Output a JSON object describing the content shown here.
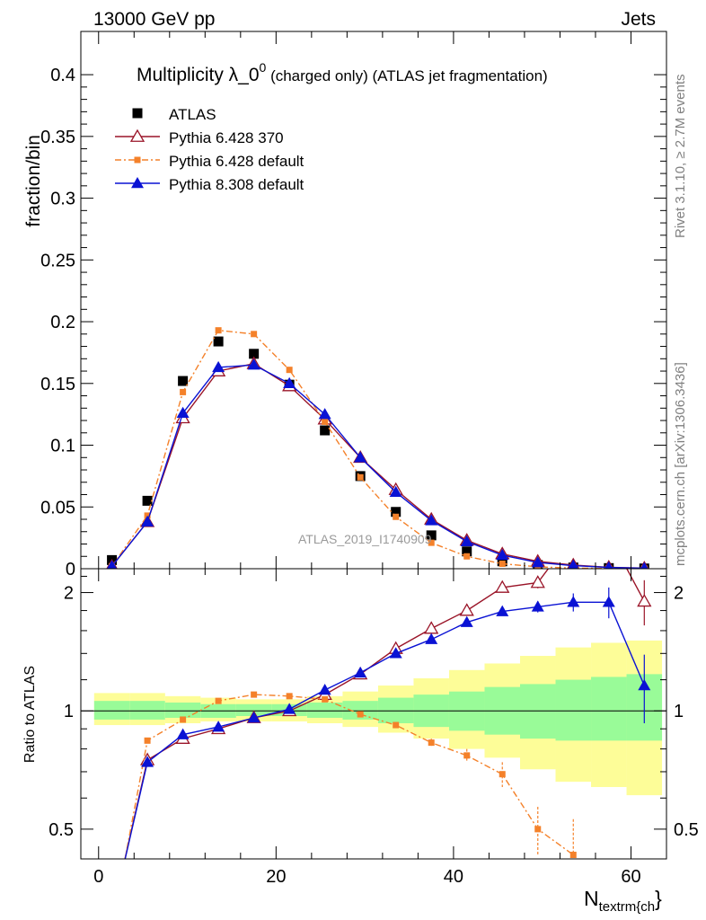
{
  "header": {
    "left": "13000 GeV pp",
    "right": "Jets"
  },
  "title": {
    "prefix": "Multiplicity λ_0",
    "superscript": "0",
    "suffix": " (charged only) (ATLAS jet fragmentation)"
  },
  "side_labels": {
    "rivet": "Rivet 3.1.10, ≥ 2.7M events",
    "mcplots": "mcplots.cern.ch [arXiv:1306.3436]"
  },
  "watermark": "ATLAS_2019_I1740909",
  "colors": {
    "atlas": "#000000",
    "py6_370": "#9a1428",
    "py6_default": "#f4812a",
    "py8_default": "#0a12d4",
    "band_inner": "#99fb98",
    "band_outer": "#fdfd98"
  },
  "chart_data": [
    {
      "type": "line",
      "panel": "main",
      "ylabel": "fraction/bin",
      "xlim": [
        -2,
        64
      ],
      "ylim": [
        0,
        0.435
      ],
      "yticks": [
        0,
        0.05,
        0.1,
        0.15,
        0.2,
        0.25,
        0.3,
        0.35,
        0.4
      ],
      "ytick_labels": [
        "0",
        "0.05",
        "0.1",
        "0.15",
        "0.2",
        "0.25",
        "0.3",
        "0.35",
        "0.4"
      ],
      "legend_position": "top-left",
      "x": [
        1.5,
        5.5,
        9.5,
        13.5,
        17.5,
        21.5,
        25.5,
        29.5,
        33.5,
        37.5,
        41.5,
        45.5,
        49.5,
        53.5,
        57.5,
        61.5
      ],
      "series": [
        {
          "name": "ATLAS",
          "marker": "square",
          "values": [
            0.007,
            0.055,
            0.152,
            0.184,
            0.174,
            0.149,
            0.112,
            0.075,
            0.046,
            0.027,
            0.014,
            0.006,
            0.003,
            0.001,
            0.0005,
            0.0002
          ]
        },
        {
          "name": "Pythia 6.428 370",
          "marker": "open-triangle",
          "values": [
            0.002,
            0.038,
            0.122,
            0.16,
            0.166,
            0.148,
            0.121,
            0.09,
            0.064,
            0.04,
            0.023,
            0.012,
            0.006,
            0.003,
            0.0012,
            0.0005
          ]
        },
        {
          "name": "Pythia 6.428 default",
          "marker": "small-square",
          "dashed": true,
          "values": [
            0.002,
            0.043,
            0.143,
            0.193,
            0.19,
            0.161,
            0.119,
            0.074,
            0.042,
            0.021,
            0.01,
            0.004,
            0.0015,
            0.0005,
            0.0002,
            0.0001
          ]
        },
        {
          "name": "Pythia 8.308 default",
          "marker": "filled-triangle",
          "values": [
            0.002,
            0.038,
            0.126,
            0.163,
            0.165,
            0.15,
            0.125,
            0.09,
            0.062,
            0.039,
            0.022,
            0.011,
            0.005,
            0.0025,
            0.001,
            0.0004
          ]
        }
      ]
    },
    {
      "type": "line",
      "panel": "ratio",
      "ylabel": "Ratio to ATLAS",
      "xlabel_main": "N",
      "xlabel_sub": "textrm{ch",
      "xlabel_close": "}",
      "log_y": true,
      "xlim": [
        -2,
        64
      ],
      "ylim": [
        0.42,
        2.3
      ],
      "yticks": [
        0.5,
        1,
        2
      ],
      "ytick_labels": [
        "0.5",
        "1",
        "2"
      ],
      "xticks": [
        0,
        20,
        40,
        60
      ],
      "xtick_labels": [
        "0",
        "20",
        "40",
        "60"
      ],
      "bin_edges": [
        -0.5,
        3.5,
        7.5,
        11.5,
        15.5,
        19.5,
        23.5,
        27.5,
        31.5,
        35.5,
        39.5,
        43.5,
        47.5,
        51.5,
        55.5,
        59.5,
        63.5
      ],
      "band_inner": [
        [
          0.95,
          1.06
        ],
        [
          0.95,
          1.06
        ],
        [
          0.96,
          1.05
        ],
        [
          0.96,
          1.04
        ],
        [
          0.97,
          1.04
        ],
        [
          0.97,
          1.04
        ],
        [
          0.96,
          1.05
        ],
        [
          0.95,
          1.06
        ],
        [
          0.93,
          1.08
        ],
        [
          0.91,
          1.1
        ],
        [
          0.89,
          1.12
        ],
        [
          0.87,
          1.15
        ],
        [
          0.85,
          1.17
        ],
        [
          0.84,
          1.2
        ],
        [
          0.84,
          1.22
        ],
        [
          0.84,
          1.24
        ]
      ],
      "band_outer": [
        [
          0.92,
          1.11
        ],
        [
          0.92,
          1.11
        ],
        [
          0.93,
          1.09
        ],
        [
          0.94,
          1.08
        ],
        [
          0.94,
          1.07
        ],
        [
          0.94,
          1.07
        ],
        [
          0.93,
          1.09
        ],
        [
          0.91,
          1.12
        ],
        [
          0.88,
          1.16
        ],
        [
          0.85,
          1.21
        ],
        [
          0.8,
          1.27
        ],
        [
          0.76,
          1.32
        ],
        [
          0.71,
          1.38
        ],
        [
          0.66,
          1.45
        ],
        [
          0.64,
          1.49
        ],
        [
          0.61,
          1.51
        ]
      ],
      "series": [
        {
          "name": "Pythia 6.428 370",
          "values": [
            0.3,
            0.75,
            0.85,
            0.9,
            0.96,
            1.0,
            1.1,
            1.24,
            1.44,
            1.62,
            1.8,
            2.06,
            2.12,
            2.8,
            2.8,
            1.9
          ],
          "errors": [
            0,
            0.01,
            0.01,
            0.01,
            0.01,
            0.01,
            0.01,
            0.01,
            0.01,
            0.02,
            0.03,
            0.05,
            0.07,
            0.1,
            0.1,
            0.25
          ]
        },
        {
          "name": "Pythia 6.428 default",
          "values": [
            0.28,
            0.84,
            0.95,
            1.06,
            1.1,
            1.09,
            1.07,
            0.98,
            0.92,
            0.83,
            0.77,
            0.69,
            0.5,
            0.43,
            0,
            0
          ],
          "errors": [
            0,
            0.01,
            0.01,
            0.01,
            0.01,
            0.01,
            0.01,
            0.01,
            0.01,
            0.02,
            0.03,
            0.05,
            0.07,
            0.1,
            0,
            0
          ]
        },
        {
          "name": "Pythia 8.308 default",
          "values": [
            0.3,
            0.74,
            0.87,
            0.91,
            0.96,
            1.01,
            1.13,
            1.25,
            1.4,
            1.52,
            1.68,
            1.79,
            1.84,
            1.89,
            1.89,
            1.16
          ],
          "errors": [
            0,
            0.01,
            0.01,
            0.01,
            0.01,
            0.01,
            0.01,
            0.01,
            0.01,
            0.02,
            0.03,
            0.04,
            0.06,
            0.1,
            0.17,
            0.23
          ]
        }
      ]
    }
  ]
}
